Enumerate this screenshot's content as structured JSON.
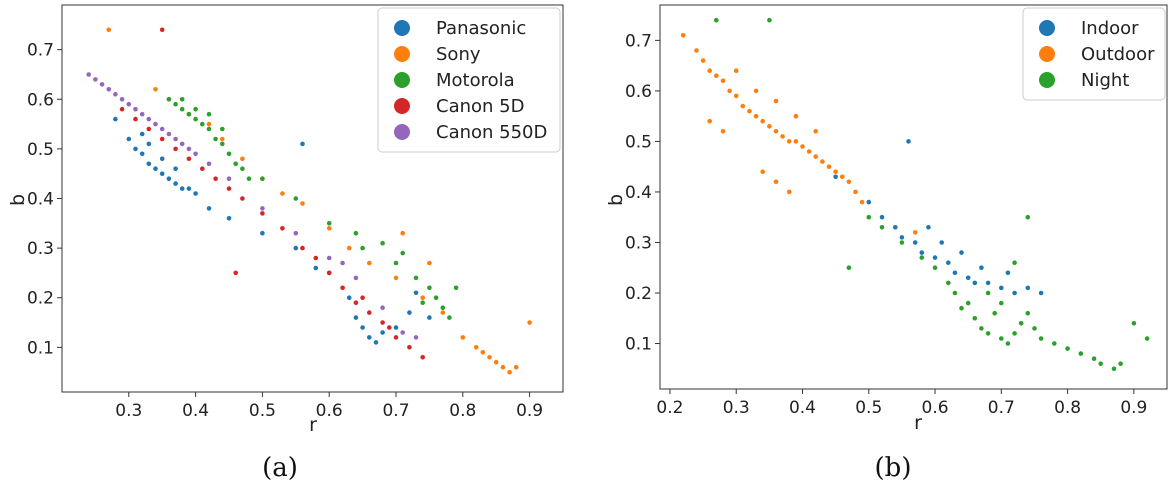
{
  "chart_data": [
    {
      "type": "scatter",
      "caption": "(a)",
      "xlabel": "r",
      "ylabel": "b",
      "xlim": [
        0.2,
        0.95
      ],
      "ylim": [
        0.01,
        0.79
      ],
      "xticks": [
        0.3,
        0.4,
        0.5,
        0.6,
        0.7,
        0.8,
        0.9
      ],
      "yticks": [
        0.1,
        0.2,
        0.3,
        0.4,
        0.5,
        0.6,
        0.7
      ],
      "legend_position": "top-right",
      "series": [
        {
          "name": "Panasonic",
          "color": "#1f77b4",
          "points": [
            [
              0.28,
              0.56
            ],
            [
              0.3,
              0.52
            ],
            [
              0.31,
              0.5
            ],
            [
              0.32,
              0.49
            ],
            [
              0.33,
              0.47
            ],
            [
              0.34,
              0.46
            ],
            [
              0.35,
              0.45
            ],
            [
              0.36,
              0.44
            ],
            [
              0.37,
              0.43
            ],
            [
              0.38,
              0.42
            ],
            [
              0.39,
              0.42
            ],
            [
              0.4,
              0.41
            ],
            [
              0.33,
              0.51
            ],
            [
              0.35,
              0.48
            ],
            [
              0.37,
              0.46
            ],
            [
              0.32,
              0.53
            ],
            [
              0.5,
              0.33
            ],
            [
              0.55,
              0.3
            ],
            [
              0.58,
              0.26
            ],
            [
              0.6,
              0.25
            ],
            [
              0.63,
              0.2
            ],
            [
              0.65,
              0.14
            ],
            [
              0.66,
              0.12
            ],
            [
              0.67,
              0.11
            ],
            [
              0.68,
              0.13
            ],
            [
              0.64,
              0.16
            ],
            [
              0.7,
              0.14
            ],
            [
              0.72,
              0.17
            ],
            [
              0.75,
              0.16
            ],
            [
              0.56,
              0.51
            ],
            [
              0.73,
              0.21
            ],
            [
              0.45,
              0.36
            ],
            [
              0.42,
              0.38
            ]
          ]
        },
        {
          "name": "Sony",
          "color": "#ff7f0e",
          "points": [
            [
              0.27,
              0.74
            ],
            [
              0.34,
              0.62
            ],
            [
              0.36,
              0.6
            ],
            [
              0.39,
              0.57
            ],
            [
              0.42,
              0.55
            ],
            [
              0.44,
              0.52
            ],
            [
              0.47,
              0.48
            ],
            [
              0.5,
              0.44
            ],
            [
              0.53,
              0.41
            ],
            [
              0.56,
              0.39
            ],
            [
              0.6,
              0.34
            ],
            [
              0.63,
              0.3
            ],
            [
              0.66,
              0.27
            ],
            [
              0.7,
              0.24
            ],
            [
              0.74,
              0.2
            ],
            [
              0.77,
              0.17
            ],
            [
              0.8,
              0.12
            ],
            [
              0.82,
              0.1
            ],
            [
              0.84,
              0.08
            ],
            [
              0.85,
              0.07
            ],
            [
              0.86,
              0.06
            ],
            [
              0.87,
              0.05
            ],
            [
              0.88,
              0.06
            ],
            [
              0.83,
              0.09
            ],
            [
              0.9,
              0.15
            ],
            [
              0.71,
              0.33
            ],
            [
              0.75,
              0.27
            ]
          ]
        },
        {
          "name": "Motorola",
          "color": "#2ca02c",
          "points": [
            [
              0.36,
              0.6
            ],
            [
              0.37,
              0.59
            ],
            [
              0.38,
              0.58
            ],
            [
              0.39,
              0.57
            ],
            [
              0.4,
              0.56
            ],
            [
              0.41,
              0.55
            ],
            [
              0.42,
              0.54
            ],
            [
              0.43,
              0.52
            ],
            [
              0.44,
              0.51
            ],
            [
              0.45,
              0.49
            ],
            [
              0.46,
              0.47
            ],
            [
              0.47,
              0.46
            ],
            [
              0.48,
              0.44
            ],
            [
              0.4,
              0.58
            ],
            [
              0.42,
              0.57
            ],
            [
              0.44,
              0.54
            ],
            [
              0.38,
              0.6
            ],
            [
              0.5,
              0.44
            ],
            [
              0.55,
              0.4
            ],
            [
              0.6,
              0.35
            ],
            [
              0.65,
              0.3
            ],
            [
              0.7,
              0.27
            ],
            [
              0.73,
              0.24
            ],
            [
              0.75,
              0.22
            ],
            [
              0.76,
              0.2
            ],
            [
              0.77,
              0.18
            ],
            [
              0.78,
              0.16
            ],
            [
              0.74,
              0.19
            ],
            [
              0.79,
              0.22
            ],
            [
              0.71,
              0.29
            ],
            [
              0.68,
              0.31
            ],
            [
              0.64,
              0.33
            ]
          ]
        },
        {
          "name": "Canon 5D",
          "color": "#d62728",
          "points": [
            [
              0.29,
              0.58
            ],
            [
              0.31,
              0.56
            ],
            [
              0.33,
              0.54
            ],
            [
              0.35,
              0.52
            ],
            [
              0.37,
              0.5
            ],
            [
              0.39,
              0.48
            ],
            [
              0.41,
              0.46
            ],
            [
              0.43,
              0.44
            ],
            [
              0.45,
              0.42
            ],
            [
              0.47,
              0.4
            ],
            [
              0.5,
              0.37
            ],
            [
              0.53,
              0.34
            ],
            [
              0.56,
              0.3
            ],
            [
              0.58,
              0.28
            ],
            [
              0.6,
              0.25
            ],
            [
              0.62,
              0.22
            ],
            [
              0.64,
              0.19
            ],
            [
              0.66,
              0.17
            ],
            [
              0.68,
              0.15
            ],
            [
              0.7,
              0.12
            ],
            [
              0.72,
              0.1
            ],
            [
              0.74,
              0.08
            ],
            [
              0.35,
              0.74
            ],
            [
              0.46,
              0.25
            ],
            [
              0.65,
              0.2
            ],
            [
              0.69,
              0.14
            ]
          ]
        },
        {
          "name": "Canon 550D",
          "color": "#9467bd",
          "points": [
            [
              0.24,
              0.65
            ],
            [
              0.25,
              0.64
            ],
            [
              0.26,
              0.63
            ],
            [
              0.27,
              0.62
            ],
            [
              0.28,
              0.61
            ],
            [
              0.29,
              0.6
            ],
            [
              0.3,
              0.59
            ],
            [
              0.31,
              0.58
            ],
            [
              0.32,
              0.57
            ],
            [
              0.33,
              0.56
            ],
            [
              0.34,
              0.55
            ],
            [
              0.35,
              0.54
            ],
            [
              0.36,
              0.53
            ],
            [
              0.37,
              0.52
            ],
            [
              0.38,
              0.51
            ],
            [
              0.39,
              0.5
            ],
            [
              0.4,
              0.49
            ],
            [
              0.42,
              0.47
            ],
            [
              0.45,
              0.44
            ],
            [
              0.5,
              0.38
            ],
            [
              0.55,
              0.33
            ],
            [
              0.6,
              0.28
            ],
            [
              0.64,
              0.24
            ],
            [
              0.68,
              0.18
            ],
            [
              0.71,
              0.13
            ],
            [
              0.73,
              0.12
            ],
            [
              0.62,
              0.27
            ]
          ]
        }
      ]
    },
    {
      "type": "scatter",
      "caption": "(b)",
      "xlabel": "r",
      "ylabel": "b",
      "xlim": [
        0.185,
        0.95
      ],
      "ylim": [
        0.01,
        0.77
      ],
      "xticks": [
        0.2,
        0.3,
        0.4,
        0.5,
        0.6,
        0.7,
        0.8,
        0.9
      ],
      "yticks": [
        0.1,
        0.2,
        0.3,
        0.4,
        0.5,
        0.6,
        0.7
      ],
      "legend_position": "top-right",
      "series": [
        {
          "name": "Indoor",
          "color": "#1f77b4",
          "points": [
            [
              0.45,
              0.43
            ],
            [
              0.5,
              0.38
            ],
            [
              0.52,
              0.35
            ],
            [
              0.54,
              0.33
            ],
            [
              0.55,
              0.31
            ],
            [
              0.57,
              0.3
            ],
            [
              0.58,
              0.28
            ],
            [
              0.6,
              0.27
            ],
            [
              0.62,
              0.26
            ],
            [
              0.63,
              0.24
            ],
            [
              0.65,
              0.23
            ],
            [
              0.66,
              0.22
            ],
            [
              0.68,
              0.22
            ],
            [
              0.7,
              0.21
            ],
            [
              0.72,
              0.2
            ],
            [
              0.74,
              0.21
            ],
            [
              0.76,
              0.2
            ],
            [
              0.56,
              0.5
            ],
            [
              0.61,
              0.3
            ],
            [
              0.67,
              0.25
            ],
            [
              0.71,
              0.24
            ],
            [
              0.64,
              0.28
            ],
            [
              0.59,
              0.33
            ]
          ]
        },
        {
          "name": "Outdoor",
          "color": "#ff7f0e",
          "points": [
            [
              0.22,
              0.71
            ],
            [
              0.24,
              0.68
            ],
            [
              0.25,
              0.66
            ],
            [
              0.26,
              0.64
            ],
            [
              0.27,
              0.63
            ],
            [
              0.28,
              0.62
            ],
            [
              0.29,
              0.6
            ],
            [
              0.3,
              0.59
            ],
            [
              0.31,
              0.57
            ],
            [
              0.32,
              0.56
            ],
            [
              0.33,
              0.55
            ],
            [
              0.34,
              0.54
            ],
            [
              0.35,
              0.53
            ],
            [
              0.36,
              0.52
            ],
            [
              0.37,
              0.51
            ],
            [
              0.38,
              0.5
            ],
            [
              0.39,
              0.5
            ],
            [
              0.4,
              0.49
            ],
            [
              0.41,
              0.48
            ],
            [
              0.42,
              0.47
            ],
            [
              0.43,
              0.46
            ],
            [
              0.44,
              0.45
            ],
            [
              0.45,
              0.44
            ],
            [
              0.46,
              0.43
            ],
            [
              0.47,
              0.42
            ],
            [
              0.48,
              0.4
            ],
            [
              0.49,
              0.38
            ],
            [
              0.3,
              0.64
            ],
            [
              0.33,
              0.6
            ],
            [
              0.36,
              0.58
            ],
            [
              0.39,
              0.55
            ],
            [
              0.42,
              0.52
            ],
            [
              0.34,
              0.44
            ],
            [
              0.36,
              0.42
            ],
            [
              0.38,
              0.4
            ],
            [
              0.26,
              0.54
            ],
            [
              0.28,
              0.52
            ],
            [
              0.57,
              0.32
            ]
          ]
        },
        {
          "name": "Night",
          "color": "#2ca02c",
          "points": [
            [
              0.27,
              0.74
            ],
            [
              0.35,
              0.74
            ],
            [
              0.47,
              0.25
            ],
            [
              0.5,
              0.35
            ],
            [
              0.52,
              0.33
            ],
            [
              0.55,
              0.3
            ],
            [
              0.58,
              0.27
            ],
            [
              0.6,
              0.25
            ],
            [
              0.62,
              0.22
            ],
            [
              0.63,
              0.2
            ],
            [
              0.65,
              0.18
            ],
            [
              0.66,
              0.15
            ],
            [
              0.67,
              0.13
            ],
            [
              0.68,
              0.12
            ],
            [
              0.7,
              0.11
            ],
            [
              0.71,
              0.1
            ],
            [
              0.72,
              0.12
            ],
            [
              0.73,
              0.14
            ],
            [
              0.74,
              0.16
            ],
            [
              0.75,
              0.13
            ],
            [
              0.76,
              0.11
            ],
            [
              0.78,
              0.1
            ],
            [
              0.8,
              0.09
            ],
            [
              0.82,
              0.08
            ],
            [
              0.84,
              0.07
            ],
            [
              0.85,
              0.06
            ],
            [
              0.87,
              0.05
            ],
            [
              0.88,
              0.06
            ],
            [
              0.7,
              0.18
            ],
            [
              0.68,
              0.2
            ],
            [
              0.72,
              0.26
            ],
            [
              0.74,
              0.35
            ],
            [
              0.9,
              0.14
            ],
            [
              0.92,
              0.11
            ],
            [
              0.64,
              0.17
            ],
            [
              0.69,
              0.16
            ]
          ]
        }
      ]
    }
  ]
}
